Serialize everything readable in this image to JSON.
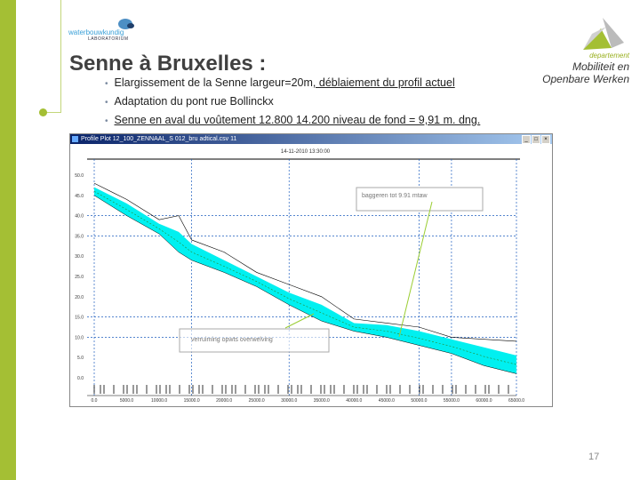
{
  "slide": {
    "title": "Senne à Bruxelles :",
    "bullets": [
      {
        "pre": "Elargissement de la Senne largeur=20m",
        "underlined": ", déblaiement du profil actuel"
      },
      {
        "pre": "Adaptation du pont rue Bollinckx",
        "underlined": ""
      },
      {
        "pre": "",
        "underlined": "Senne en aval du voûtement 12.800 14.200  niveau de fond = 9,91 m. dng."
      }
    ],
    "page_number": "17",
    "accent_color": "#a4bf34"
  },
  "logos": {
    "left": {
      "line1": "waterbouwkundig",
      "line2": "LABORATORIUM"
    },
    "right": {
      "line1": "departement",
      "line2": "Mobiliteit en",
      "line3": "Openbare Werken"
    }
  },
  "window": {
    "title": "Profile Plot  12_100_ZENNAAL_S 012_bru adtical.csv 11",
    "plot_title": "14-11-2010 13:30:00",
    "controls": [
      "_",
      "□",
      "×"
    ]
  },
  "chart_data": {
    "type": "area",
    "x_ticks": [
      "0.0",
      "5000.0",
      "10000.0",
      "15000.0",
      "20000.0",
      "25000.0",
      "30000.0",
      "35000.0",
      "40000.0",
      "45000.0",
      "50000.0",
      "55000.0",
      "60000.0",
      "65000.0"
    ],
    "y_ticks": [
      "0.0",
      "5.0",
      "10.0",
      "15.0",
      "20.0",
      "25.0",
      "30.0",
      "35.0",
      "40.0",
      "45.0",
      "50.0"
    ],
    "xlim": [
      0,
      65000
    ],
    "ylim": [
      0,
      50
    ],
    "grid": true,
    "fill_color": "#00f0f0",
    "x": [
      0,
      5000,
      10000,
      13000,
      15000,
      20000,
      25000,
      30000,
      35000,
      40000,
      45000,
      50000,
      55000,
      60000,
      65000
    ],
    "series": [
      {
        "values": [
          47,
          43,
          38,
          36,
          33,
          29,
          25,
          21,
          18,
          13.5,
          13,
          11.5,
          9.5,
          7.5,
          5.5
        ]
      },
      {
        "values": [
          45,
          40,
          35.5,
          31,
          29,
          26,
          22.5,
          18,
          14,
          11.5,
          10,
          8,
          6,
          3,
          1
        ]
      },
      {
        "values": [
          48,
          44,
          39,
          40,
          34,
          31,
          26,
          23,
          20,
          14.5,
          13.5,
          12.5,
          10,
          9.5,
          9
        ]
      }
    ],
    "annotations": [
      "baggeren tot 9.91 mtaw",
      "verruiming opwts overwelving"
    ]
  }
}
